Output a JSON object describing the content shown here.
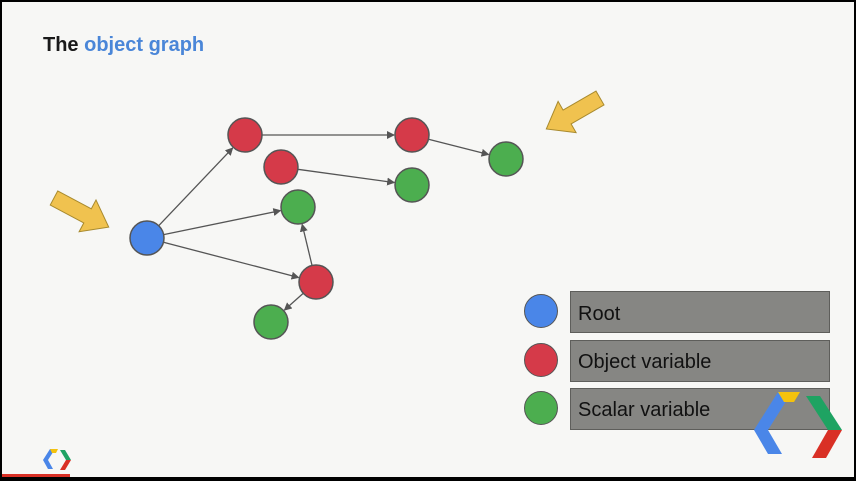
{
  "title": {
    "prefix": "The ",
    "highlight": "object graph"
  },
  "legend": [
    {
      "label": "Root",
      "kind": "root"
    },
    {
      "label": "Object variable",
      "kind": "object"
    },
    {
      "label": "Scalar variable",
      "kind": "scalar"
    }
  ],
  "colors": {
    "root": "#4a86e8",
    "object": "#d53a49",
    "scalar": "#4cae4f",
    "arrow_pointer": "#f0c24f",
    "legend_box": "#868683",
    "title_accent": "#4a86d8"
  },
  "graph": {
    "nodes": [
      {
        "id": "root",
        "kind": "root"
      },
      {
        "id": "obj-top",
        "kind": "object"
      },
      {
        "id": "obj-mid",
        "kind": "object"
      },
      {
        "id": "obj-right",
        "kind": "object"
      },
      {
        "id": "obj-low",
        "kind": "object"
      },
      {
        "id": "sca-far-right",
        "kind": "scalar"
      },
      {
        "id": "sca-right",
        "kind": "scalar"
      },
      {
        "id": "sca-center",
        "kind": "scalar"
      },
      {
        "id": "sca-bottom",
        "kind": "scalar"
      }
    ],
    "edges": [
      {
        "from": "root",
        "to": "obj-top"
      },
      {
        "from": "root",
        "to": "sca-center"
      },
      {
        "from": "root",
        "to": "obj-low"
      },
      {
        "from": "obj-top",
        "to": "obj-right"
      },
      {
        "from": "obj-mid",
        "to": "sca-right"
      },
      {
        "from": "obj-right",
        "to": "sca-far-right"
      },
      {
        "from": "obj-low",
        "to": "sca-center"
      },
      {
        "from": "obj-low",
        "to": "sca-bottom"
      }
    ],
    "pointers": [
      {
        "target": "root"
      },
      {
        "target": "sca-far-right"
      }
    ]
  },
  "logo_icon": "chrome-devtools-logo"
}
